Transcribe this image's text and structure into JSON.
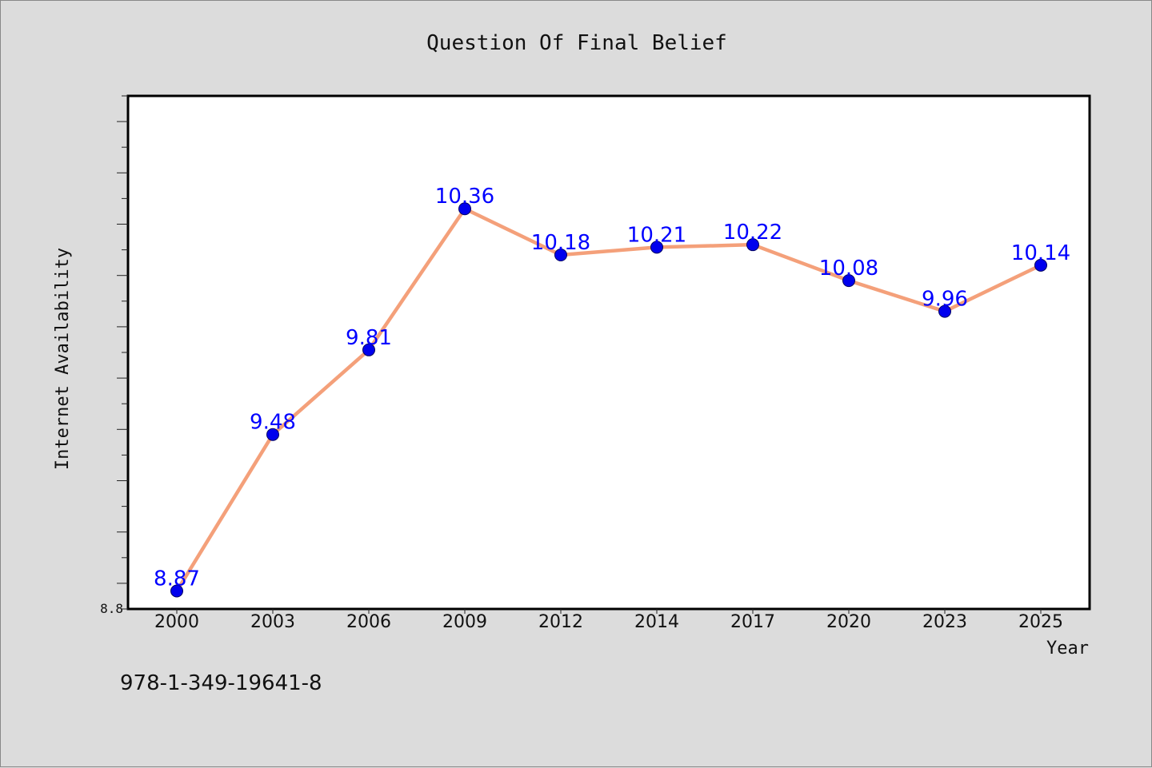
{
  "chart_data": {
    "type": "line",
    "title": "Question Of Final Belief",
    "xlabel": "Year",
    "ylabel": "Internet Availability",
    "categories": [
      "2000",
      "2003",
      "2006",
      "2009",
      "2012",
      "2014",
      "2017",
      "2020",
      "2023",
      "2025"
    ],
    "series": [
      {
        "values": [
          8.87,
          9.48,
          9.81,
          10.36,
          10.18,
          10.21,
          10.22,
          10.08,
          9.96,
          10.14
        ],
        "line_color": "#f4a07a",
        "marker_color": "#0000ee"
      }
    ],
    "data_labels": [
      "8.87",
      "9.48",
      "9.81",
      "10.36",
      "10.18",
      "10.21",
      "10.22",
      "10.08",
      "9.96",
      "10.14"
    ],
    "ylim": [
      8.8,
      10.8
    ],
    "y_tick_labels": [
      "8.8"
    ],
    "y_minor_step": 0.1,
    "grid": false,
    "legend": "none",
    "label_color": "#0000ff"
  },
  "footer": {
    "isbn": "978-1-349-19641-8"
  }
}
